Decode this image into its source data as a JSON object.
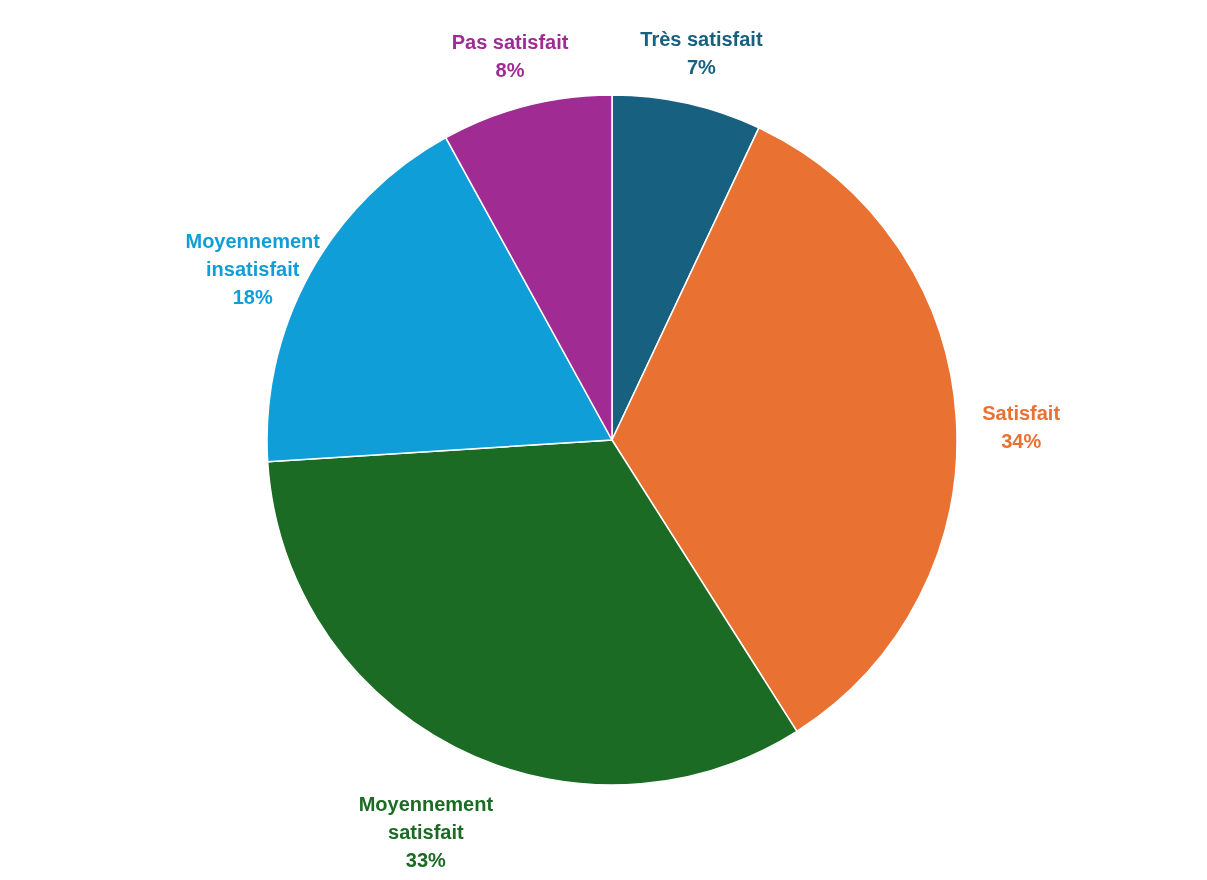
{
  "chart_data": {
    "type": "pie",
    "categories": [
      "Très satisfait",
      "Satisfait",
      "Moyennement satisfait",
      "Moyennement insatisfait",
      "Pas satisfait"
    ],
    "values": [
      7,
      34,
      33,
      18,
      8
    ],
    "colors": [
      "#17607f",
      "#e97132",
      "#1b6b24",
      "#109ed8",
      "#a02b93"
    ],
    "value_labels": [
      "7%",
      "34%",
      "33%",
      "18%",
      "8%"
    ],
    "legend": false
  }
}
